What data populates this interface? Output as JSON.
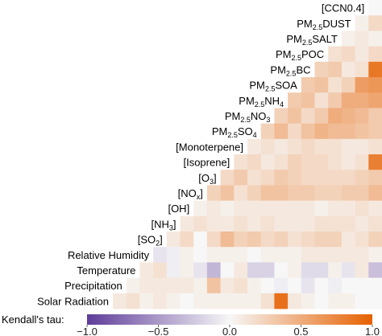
{
  "chart_data": {
    "type": "heatmap",
    "title": "",
    "variables": [
      {
        "prefix": "[CCN0.4]"
      },
      {
        "prefix": "PM",
        "sub": "2.5",
        "suffix": "DUST"
      },
      {
        "prefix": "PM",
        "sub": "2.5",
        "suffix": "SALT"
      },
      {
        "prefix": "PM",
        "sub": "2.5",
        "suffix": "POC"
      },
      {
        "prefix": "PM",
        "sub": "2.5",
        "suffix": "BC"
      },
      {
        "prefix": "PM",
        "sub": "2.5",
        "suffix": "SOA"
      },
      {
        "prefix": "PM",
        "sub": "2.5",
        "suffix": "NH",
        "sub2": "4"
      },
      {
        "prefix": "PM",
        "sub": "2.5",
        "suffix": "NO",
        "sub2": "3"
      },
      {
        "prefix": "PM",
        "sub": "2.5",
        "suffix": "SO",
        "sub2": "4"
      },
      {
        "prefix": "[Monoterpene]"
      },
      {
        "prefix": "[Isoprene]"
      },
      {
        "prefix": "[O",
        "sub": "3",
        "suffix": "]"
      },
      {
        "prefix": "[NO",
        "sub": "x",
        "suffix": "]"
      },
      {
        "prefix": "[OH]"
      },
      {
        "prefix": "[NH",
        "sub": "3",
        "suffix": "]"
      },
      {
        "prefix": "[SO",
        "sub": "2",
        "suffix": "]"
      },
      {
        "prefix": "Relative Humidity"
      },
      {
        "prefix": "Temperature"
      },
      {
        "prefix": "Precipitation"
      },
      {
        "prefix": "Solar Radiation"
      }
    ],
    "cell_values_by_row": [
      [
        0.0
      ],
      [
        0.05,
        0.2
      ],
      [
        0.05,
        0.1,
        0.05
      ],
      [
        0.15,
        0.2,
        0.1,
        0.2
      ],
      [
        0.25,
        0.3,
        0.1,
        0.15,
        0.85
      ],
      [
        0.3,
        0.35,
        0.15,
        0.25,
        0.6,
        0.65
      ],
      [
        0.3,
        0.35,
        0.15,
        0.3,
        0.5,
        0.5,
        0.55
      ],
      [
        0.25,
        0.35,
        0.2,
        0.3,
        0.5,
        0.45,
        0.4,
        0.3
      ],
      [
        0.25,
        0.4,
        0.2,
        0.35,
        0.45,
        0.4,
        0.4,
        0.35,
        0.3
      ],
      [
        0.1,
        0.15,
        0.1,
        0.15,
        0.2,
        0.15,
        0.15,
        0.1,
        0.1,
        0.15
      ],
      [
        0.15,
        0.2,
        0.1,
        0.15,
        0.25,
        0.2,
        0.2,
        0.15,
        0.1,
        0.15,
        0.8
      ],
      [
        0.2,
        0.3,
        0.15,
        0.2,
        0.3,
        0.25,
        0.2,
        0.2,
        0.2,
        0.2,
        0.25,
        0.3
      ],
      [
        0.25,
        0.35,
        0.15,
        0.25,
        0.35,
        0.35,
        0.3,
        0.3,
        0.25,
        0.25,
        0.3,
        0.3,
        0.4
      ],
      [
        0.05,
        0.1,
        0.05,
        0.1,
        0.1,
        0.1,
        0.1,
        0.1,
        0.1,
        0.05,
        0.1,
        0.1,
        0.15,
        0.1
      ],
      [
        0.1,
        0.15,
        0.1,
        0.1,
        0.15,
        0.1,
        0.15,
        0.1,
        0.1,
        0.1,
        0.15,
        0.15,
        0.15,
        0.1,
        0.15
      ],
      [
        0.1,
        0.2,
        0.0,
        0.2,
        0.4,
        0.25,
        0.3,
        0.2,
        0.25,
        0.15,
        0.2,
        0.25,
        0.25,
        0.1,
        0.15,
        0.25
      ],
      [
        -0.1,
        -0.05,
        0.05,
        0.0,
        0.05,
        0.05,
        0.05,
        0.0,
        0.05,
        0.05,
        0.05,
        0.1,
        0.1,
        0.1,
        0.1,
        0.1,
        0.05
      ],
      [
        0.1,
        0.15,
        -0.05,
        0.05,
        -0.1,
        -0.35,
        0.0,
        0.1,
        -0.2,
        -0.2,
        0.0,
        0.05,
        -0.15,
        -0.15,
        0.05,
        -0.1,
        0.1,
        -0.3
      ],
      [
        0.05,
        0.1,
        0.1,
        0.1,
        0.1,
        0.05,
        0.35,
        0.1,
        0.15,
        0.05,
        0.0,
        -0.05,
        0.0,
        -0.1,
        0.0,
        -0.05,
        0.0,
        0.0,
        0.0
      ],
      [
        0.1,
        0.15,
        0.05,
        0.1,
        0.05,
        0.0,
        0.05,
        0.05,
        0.05,
        0.05,
        0.05,
        0.15,
        0.9,
        0.1,
        0.05,
        0.0,
        0.05,
        0.05,
        0.0,
        0.0
      ]
    ],
    "colorbar": {
      "label": "Kendall's tau:",
      "ticks": [
        "−1.0",
        "−0.5",
        "0.0",
        "0.5",
        "1.0"
      ],
      "range": [
        -1.0,
        1.0
      ],
      "colors": {
        "low": "#5e3c99",
        "mid": "#f7f7f7",
        "high": "#e66101"
      }
    }
  }
}
